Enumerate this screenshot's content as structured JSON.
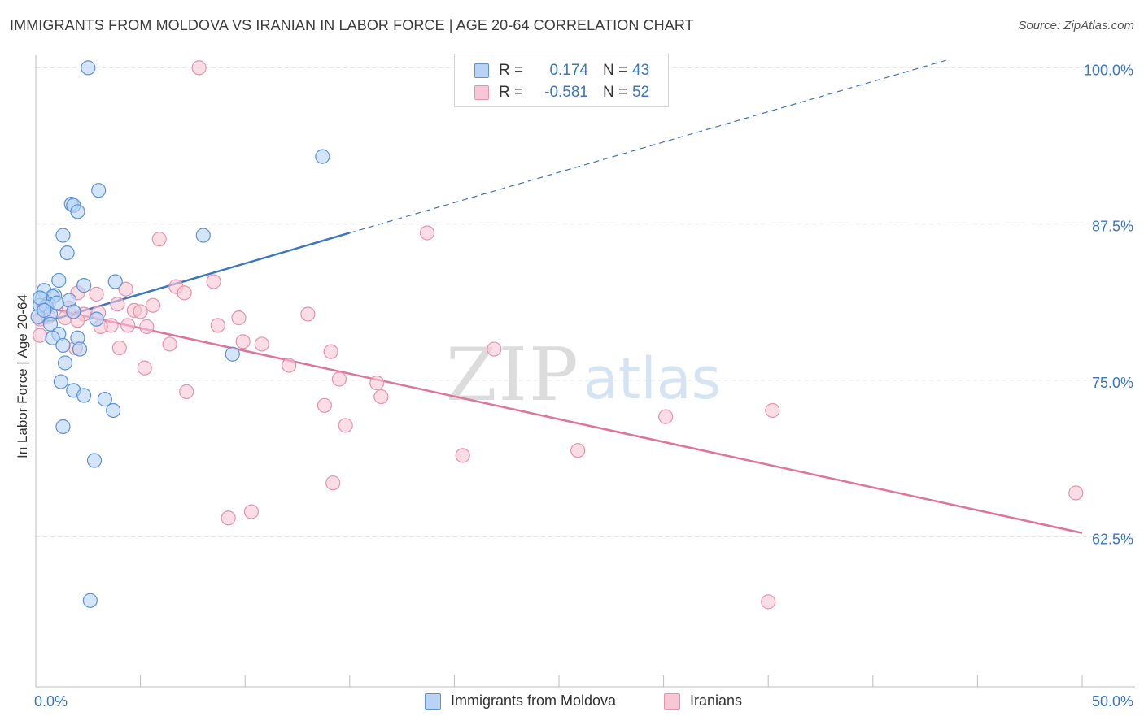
{
  "title": "IMMIGRANTS FROM MOLDOVA VS IRANIAN IN LABOR FORCE | AGE 20-64 CORRELATION CHART",
  "source": "Source: ZipAtlas.com",
  "watermark": {
    "zip": "ZIP",
    "atlas": "atlas"
  },
  "colors": {
    "blue_fill": "#b8d3f5",
    "blue_stroke": "#5b92d8",
    "blue_line": "#3a76c4",
    "pink_fill": "#f9c6d6",
    "pink_stroke": "#e892ae",
    "pink_line": "#e0729b",
    "axis_value_text": "#3a76c4",
    "grid": "#e4e4e4"
  },
  "legend": {
    "rows": [
      {
        "series": "blue",
        "r_label": "R =",
        "r_value": "0.174",
        "n_label": "N =",
        "n_value": "43"
      },
      {
        "series": "pink",
        "r_label": "R =",
        "r_value": "-0.581",
        "n_label": "N =",
        "n_value": "52"
      }
    ]
  },
  "bottom_legend": [
    {
      "series": "blue",
      "label": "Immigrants from Moldova"
    },
    {
      "series": "pink",
      "label": "Iranians"
    }
  ],
  "chart_data": {
    "type": "scatter",
    "title": "IMMIGRANTS FROM MOLDOVA VS IRANIAN IN LABOR FORCE | AGE 20-64 CORRELATION CHART",
    "xlabel": "",
    "ylabel": "In Labor Force | Age 20-64",
    "xlim": [
      0,
      50
    ],
    "ylim": [
      50.5,
      101
    ],
    "x_tick_labels": [
      "0.0%",
      "50.0%"
    ],
    "y_ticks": [
      62.5,
      75.0,
      87.5,
      100.0
    ],
    "y_tick_labels": [
      "62.5%",
      "75.0%",
      "87.5%",
      "100.0%"
    ],
    "grid": true,
    "legend_position": "top-center",
    "series": [
      {
        "name": "Immigrants from Moldova",
        "color": "blue",
        "r": 0.174,
        "n": 43,
        "trend": {
          "x_start": 0.1,
          "y_start": 79.5,
          "x_solid_end": 15.0,
          "y_solid_end": 86.8,
          "x_dash_end": 43.5,
          "y_dash_end": 100.6
        },
        "points": [
          [
            2.5,
            100.0
          ],
          [
            13.7,
            92.9
          ],
          [
            3.0,
            90.2
          ],
          [
            1.7,
            89.1
          ],
          [
            1.8,
            89.0
          ],
          [
            2.0,
            88.5
          ],
          [
            1.3,
            86.6
          ],
          [
            8.0,
            86.6
          ],
          [
            1.5,
            85.2
          ],
          [
            1.1,
            83.0
          ],
          [
            3.8,
            82.9
          ],
          [
            2.3,
            82.6
          ],
          [
            0.4,
            82.2
          ],
          [
            0.9,
            81.8
          ],
          [
            0.8,
            81.7
          ],
          [
            0.3,
            81.5
          ],
          [
            1.6,
            81.4
          ],
          [
            0.6,
            81.1
          ],
          [
            0.2,
            81.0
          ],
          [
            0.5,
            80.9
          ],
          [
            1.8,
            80.5
          ],
          [
            0.7,
            80.3
          ],
          [
            0.1,
            80.1
          ],
          [
            2.9,
            79.9
          ],
          [
            0.7,
            79.5
          ],
          [
            1.1,
            78.7
          ],
          [
            0.8,
            78.4
          ],
          [
            2.0,
            78.4
          ],
          [
            1.3,
            77.8
          ],
          [
            2.1,
            77.5
          ],
          [
            9.4,
            77.1
          ],
          [
            1.4,
            76.4
          ],
          [
            1.2,
            74.9
          ],
          [
            1.8,
            74.2
          ],
          [
            2.3,
            73.8
          ],
          [
            3.3,
            73.5
          ],
          [
            3.7,
            72.6
          ],
          [
            1.3,
            71.3
          ],
          [
            2.8,
            68.6
          ],
          [
            2.6,
            57.4
          ],
          [
            0.2,
            81.6
          ],
          [
            0.4,
            80.6
          ],
          [
            1.0,
            81.2
          ]
        ]
      },
      {
        "name": "Iranians",
        "color": "pink",
        "r": -0.581,
        "n": 52,
        "trend": {
          "x_start": 0.0,
          "y_start": 81.0,
          "x_end": 50.0,
          "y_end": 62.8
        },
        "points": [
          [
            7.8,
            100.0
          ],
          [
            18.7,
            86.8
          ],
          [
            5.9,
            86.3
          ],
          [
            8.5,
            82.9
          ],
          [
            6.7,
            82.5
          ],
          [
            4.3,
            82.3
          ],
          [
            2.0,
            82.0
          ],
          [
            7.1,
            82.0
          ],
          [
            2.9,
            81.9
          ],
          [
            3.9,
            81.1
          ],
          [
            5.6,
            81.0
          ],
          [
            1.6,
            80.8
          ],
          [
            4.7,
            80.6
          ],
          [
            5.0,
            80.5
          ],
          [
            13.0,
            80.3
          ],
          [
            2.3,
            80.3
          ],
          [
            9.7,
            80.0
          ],
          [
            1.4,
            80.0
          ],
          [
            0.2,
            79.9
          ],
          [
            8.7,
            79.4
          ],
          [
            4.4,
            79.4
          ],
          [
            3.6,
            79.4
          ],
          [
            3.1,
            79.3
          ],
          [
            5.3,
            79.3
          ],
          [
            9.9,
            78.1
          ],
          [
            10.8,
            77.9
          ],
          [
            6.4,
            77.9
          ],
          [
            1.9,
            77.6
          ],
          [
            4.0,
            77.6
          ],
          [
            21.9,
            77.5
          ],
          [
            14.1,
            77.3
          ],
          [
            0.2,
            78.6
          ],
          [
            12.1,
            76.2
          ],
          [
            5.2,
            76.0
          ],
          [
            14.5,
            75.1
          ],
          [
            16.3,
            74.8
          ],
          [
            16.5,
            73.7
          ],
          [
            7.2,
            74.1
          ],
          [
            13.8,
            73.0
          ],
          [
            35.2,
            72.6
          ],
          [
            30.1,
            72.1
          ],
          [
            14.8,
            71.4
          ],
          [
            25.9,
            69.4
          ],
          [
            20.4,
            69.0
          ],
          [
            14.2,
            66.8
          ],
          [
            10.3,
            64.5
          ],
          [
            9.2,
            64.0
          ],
          [
            49.7,
            66.0
          ],
          [
            35.0,
            57.3
          ],
          [
            2.0,
            79.8
          ],
          [
            0.6,
            80.1
          ],
          [
            3.0,
            80.4
          ]
        ]
      }
    ]
  }
}
